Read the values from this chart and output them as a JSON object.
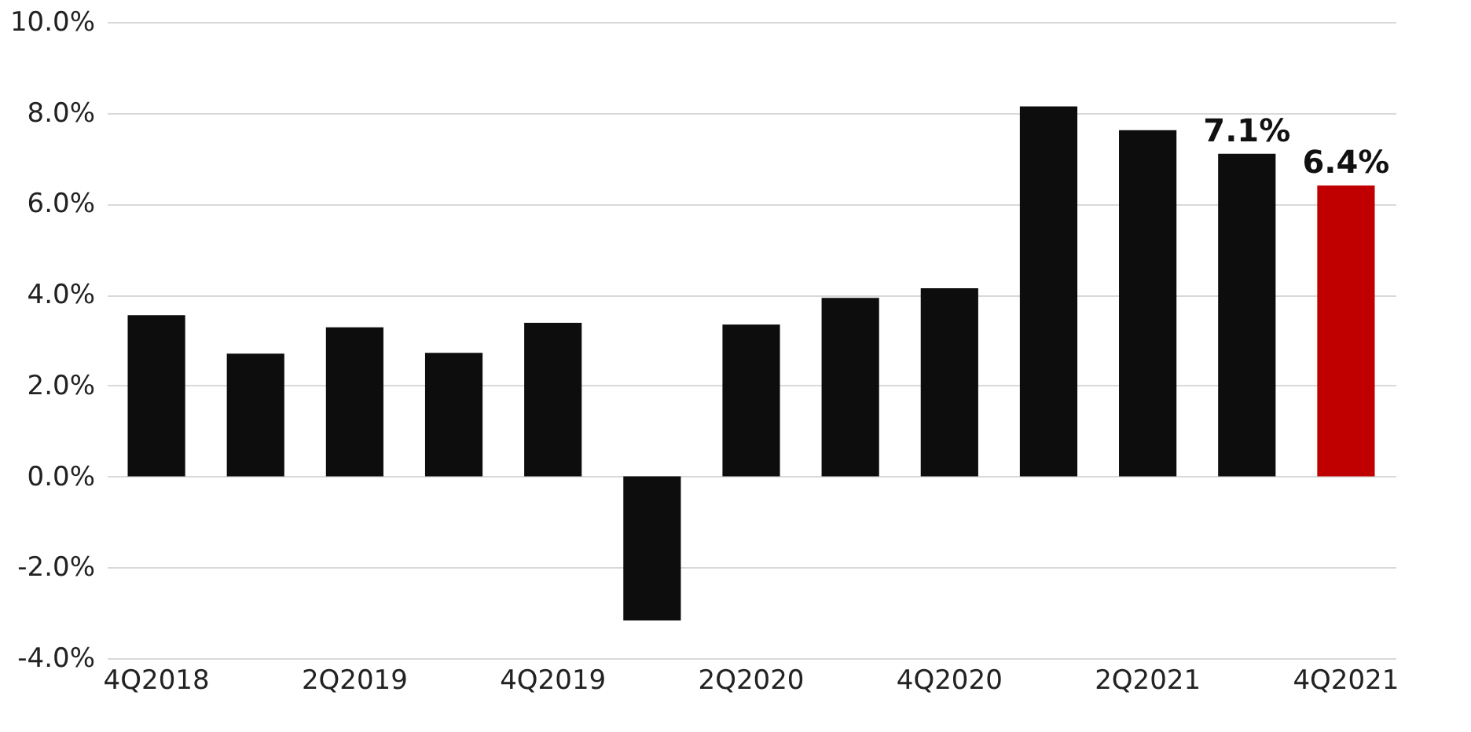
{
  "chart_data": {
    "type": "bar",
    "categories": [
      "4Q2018",
      null,
      "2Q2019",
      null,
      "4Q2019",
      null,
      "2Q2020",
      null,
      "4Q2020",
      null,
      "2Q2021",
      null,
      "4Q2021"
    ],
    "values": [
      3.55,
      2.7,
      3.28,
      2.72,
      3.38,
      -3.17,
      3.34,
      3.93,
      4.14,
      8.14,
      7.62,
      7.1,
      6.4
    ],
    "colors": [
      "#0d0d0d",
      "#0d0d0d",
      "#0d0d0d",
      "#0d0d0d",
      "#0d0d0d",
      "#0d0d0d",
      "#0d0d0d",
      "#0d0d0d",
      "#0d0d0d",
      "#0d0d0d",
      "#0d0d0d",
      "#0d0d0d",
      "#c00000"
    ],
    "value_labels": [
      null,
      null,
      null,
      null,
      null,
      null,
      null,
      null,
      null,
      null,
      null,
      "7.1%",
      "6.4%"
    ],
    "ylim": [
      -4,
      10
    ],
    "yticks": [
      {
        "value": -4,
        "label": "-4.0%"
      },
      {
        "value": -2,
        "label": "-2.0%"
      },
      {
        "value": 0,
        "label": "0.0%"
      },
      {
        "value": 2,
        "label": "2.0%"
      },
      {
        "value": 4,
        "label": "4.0%"
      },
      {
        "value": 6,
        "label": "6.0%"
      },
      {
        "value": 8,
        "label": "8.0%"
      },
      {
        "value": 10,
        "label": "10.0%"
      }
    ],
    "grid": "y"
  }
}
